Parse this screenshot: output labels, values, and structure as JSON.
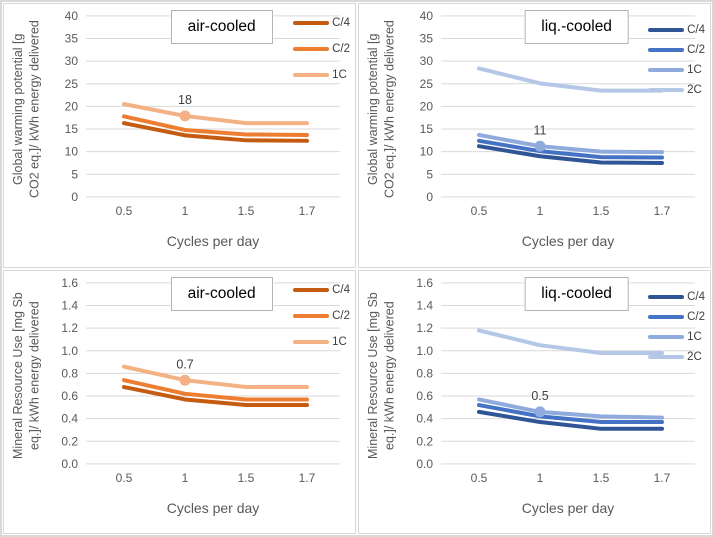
{
  "frame": {
    "border_color": "#d9d9d9",
    "background": "#ffffff"
  },
  "text_colors": {
    "axis": "#595959",
    "data_label": "#404040",
    "grid": "#d9d9d9",
    "panel_title": "#000000"
  },
  "chart_data": [
    {
      "type": "line",
      "panel_title": "air-cooled",
      "xlabel": "Cycles per day",
      "ylabel": "Global warming potential [g CO2 eq.]/ kWh energy delivered",
      "ylabel_line1": "Global warming potential [g",
      "ylabel_line2": "CO2 eq.]/ kWh energy delivered",
      "categories": [
        "0.5",
        "1",
        "1.5",
        "1.7"
      ],
      "ylim": [
        0,
        40
      ],
      "ytick_step": 5,
      "ytick_decimals": 0,
      "grid": true,
      "legend_position": "right",
      "series": [
        {
          "name": "C/4",
          "color": "#C55A11",
          "values": [
            16.3,
            13.6,
            12.5,
            12.4
          ]
        },
        {
          "name": "C/2",
          "color": "#ED7D31",
          "values": [
            17.8,
            14.8,
            13.8,
            13.7
          ]
        },
        {
          "name": "1C",
          "color": "#F4B183",
          "values": [
            20.5,
            17.9,
            16.3,
            16.3
          ]
        }
      ],
      "annotation": {
        "series": "1C",
        "series_index": 2,
        "category_index": 1,
        "label": "18"
      }
    },
    {
      "type": "line",
      "panel_title": "liq.-cooled",
      "xlabel": "Cycles per day",
      "ylabel": "Global warming potential [g CO2 eq.]/ kWh energy delivered",
      "ylabel_line1": "Global warming potential [g",
      "ylabel_line2": "CO2 eq.]/ kWh energy delivered",
      "categories": [
        "0.5",
        "1",
        "1.5",
        "1.7"
      ],
      "ylim": [
        0,
        40
      ],
      "ytick_step": 5,
      "ytick_decimals": 0,
      "grid": true,
      "legend_position": "right",
      "series": [
        {
          "name": "C/4",
          "color": "#2F5597",
          "values": [
            11.2,
            9.0,
            7.6,
            7.5
          ]
        },
        {
          "name": "C/2",
          "color": "#4472C4",
          "values": [
            12.4,
            10.1,
            8.8,
            8.7
          ]
        },
        {
          "name": "1C",
          "color": "#8FAADC",
          "values": [
            13.7,
            11.2,
            10.0,
            9.9
          ]
        },
        {
          "name": "2C",
          "color": "#B4C7E7",
          "values": [
            28.4,
            25.1,
            23.5,
            23.5
          ]
        }
      ],
      "annotation": {
        "series": "1C",
        "series_index": 2,
        "category_index": 1,
        "label": "11"
      }
    },
    {
      "type": "line",
      "panel_title": "air-cooled",
      "xlabel": "Cycles per day",
      "ylabel": "Mineral Resource Use [mg Sb eq.]/ kWh energy delivered",
      "ylabel_line1": "Mineral Resource Use [mg Sb",
      "ylabel_line2": "eq.]/ kWh energy delivered",
      "categories": [
        "0.5",
        "1",
        "1.5",
        "1.7"
      ],
      "ylim": [
        0,
        1.6
      ],
      "ytick_step": 0.2,
      "ytick_decimals": 1,
      "grid": true,
      "legend_position": "right",
      "series": [
        {
          "name": "C/4",
          "color": "#C55A11",
          "values": [
            0.68,
            0.57,
            0.52,
            0.52
          ]
        },
        {
          "name": "C/2",
          "color": "#ED7D31",
          "values": [
            0.74,
            0.62,
            0.57,
            0.57
          ]
        },
        {
          "name": "1C",
          "color": "#F4B183",
          "values": [
            0.86,
            0.74,
            0.68,
            0.68
          ]
        }
      ],
      "annotation": {
        "series": "1C",
        "series_index": 2,
        "category_index": 1,
        "label": "0.7"
      }
    },
    {
      "type": "line",
      "panel_title": "liq.-cooled",
      "xlabel": "Cycles per day",
      "ylabel": "Mineral Resource Use [mg Sb eq.]/ kWh energy delivered",
      "ylabel_line1": "Mineral Resource Use [mg Sb",
      "ylabel_line2": "eq.]/ kWh energy delivered",
      "categories": [
        "0.5",
        "1",
        "1.5",
        "1.7"
      ],
      "ylim": [
        0,
        1.6
      ],
      "ytick_step": 0.2,
      "ytick_decimals": 1,
      "grid": true,
      "legend_position": "right",
      "series": [
        {
          "name": "C/4",
          "color": "#2F5597",
          "values": [
            0.46,
            0.37,
            0.31,
            0.31
          ]
        },
        {
          "name": "C/2",
          "color": "#4472C4",
          "values": [
            0.52,
            0.42,
            0.37,
            0.37
          ]
        },
        {
          "name": "1C",
          "color": "#8FAADC",
          "values": [
            0.57,
            0.46,
            0.42,
            0.41
          ]
        },
        {
          "name": "2C",
          "color": "#B4C7E7",
          "values": [
            1.18,
            1.05,
            0.98,
            0.98
          ]
        }
      ],
      "annotation": {
        "series": "1C",
        "series_index": 2,
        "category_index": 1,
        "label": "0.5"
      }
    }
  ]
}
